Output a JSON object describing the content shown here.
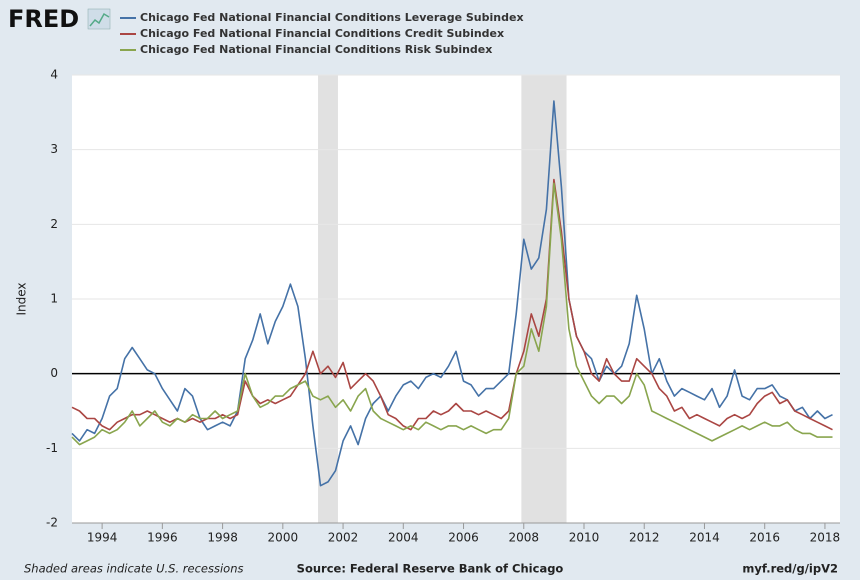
{
  "chart_data": {
    "type": "line",
    "logo": "FRED",
    "y_label": "Index",
    "footer_left": "Shaded areas indicate U.S. recessions",
    "source": "Source: Federal Reserve Bank of Chicago",
    "url": "myf.red/g/ipV2",
    "xlim": [
      1993,
      2018.5
    ],
    "xticks": [
      1994,
      1996,
      1998,
      2000,
      2002,
      2004,
      2006,
      2008,
      2010,
      2012,
      2014,
      2016,
      2018
    ],
    "ylim": [
      -2,
      4
    ],
    "yticks": [
      -2,
      -1,
      0,
      1,
      2,
      3,
      4
    ],
    "grid": true,
    "recessions": [
      [
        2001.17,
        2001.83
      ],
      [
        2007.92,
        2009.42
      ]
    ],
    "x": [
      1993,
      1993.25,
      1993.5,
      1993.75,
      1994,
      1994.25,
      1994.5,
      1994.75,
      1995,
      1995.25,
      1995.5,
      1995.75,
      1996,
      1996.25,
      1996.5,
      1996.75,
      1997,
      1997.25,
      1997.5,
      1997.75,
      1998,
      1998.25,
      1998.5,
      1998.75,
      1999,
      1999.25,
      1999.5,
      1999.75,
      2000,
      2000.25,
      2000.5,
      2000.75,
      2001,
      2001.25,
      2001.5,
      2001.75,
      2002,
      2002.25,
      2002.5,
      2002.75,
      2003,
      2003.25,
      2003.5,
      2003.75,
      2004,
      2004.25,
      2004.5,
      2004.75,
      2005,
      2005.25,
      2005.5,
      2005.75,
      2006,
      2006.25,
      2006.5,
      2006.75,
      2007,
      2007.25,
      2007.5,
      2007.75,
      2008,
      2008.25,
      2008.5,
      2008.75,
      2009,
      2009.25,
      2009.5,
      2009.75,
      2010,
      2010.25,
      2010.5,
      2010.75,
      2011,
      2011.25,
      2011.5,
      2011.75,
      2012,
      2012.25,
      2012.5,
      2012.75,
      2013,
      2013.25,
      2013.5,
      2013.75,
      2014,
      2014.25,
      2014.5,
      2014.75,
      2015,
      2015.25,
      2015.5,
      2015.75,
      2016,
      2016.25,
      2016.5,
      2016.75,
      2017,
      2017.25,
      2017.5,
      2017.75,
      2018,
      2018.25
    ],
    "series": [
      {
        "name": "Chicago Fed National Financial Conditions Leverage Subindex",
        "color": "#4572a7",
        "values": [
          -0.8,
          -0.9,
          -0.75,
          -0.8,
          -0.6,
          -0.3,
          -0.2,
          0.2,
          0.35,
          0.2,
          0.05,
          0.0,
          -0.2,
          -0.35,
          -0.5,
          -0.2,
          -0.3,
          -0.6,
          -0.75,
          -0.7,
          -0.65,
          -0.7,
          -0.5,
          0.2,
          0.45,
          0.8,
          0.4,
          0.7,
          0.9,
          1.2,
          0.9,
          0.2,
          -0.7,
          -1.5,
          -1.45,
          -1.3,
          -0.9,
          -0.7,
          -0.95,
          -0.6,
          -0.4,
          -0.3,
          -0.5,
          -0.3,
          -0.15,
          -0.1,
          -0.2,
          -0.05,
          0.0,
          -0.05,
          0.1,
          0.3,
          -0.1,
          -0.15,
          -0.3,
          -0.2,
          -0.2,
          -0.1,
          0.0,
          0.8,
          1.8,
          1.4,
          1.55,
          2.2,
          3.65,
          2.5,
          1.0,
          0.5,
          0.3,
          0.2,
          -0.1,
          0.1,
          0.0,
          0.1,
          0.4,
          1.05,
          0.6,
          0.0,
          0.2,
          -0.1,
          -0.3,
          -0.2,
          -0.25,
          -0.3,
          -0.35,
          -0.2,
          -0.45,
          -0.3,
          0.05,
          -0.3,
          -0.35,
          -0.2,
          -0.2,
          -0.15,
          -0.3,
          -0.35,
          -0.5,
          -0.45,
          -0.6,
          -0.5,
          -0.6,
          -0.55
        ]
      },
      {
        "name": "Chicago Fed National Financial Conditions Credit Subindex",
        "color": "#aa4643",
        "values": [
          -0.45,
          -0.5,
          -0.6,
          -0.6,
          -0.7,
          -0.75,
          -0.65,
          -0.6,
          -0.55,
          -0.55,
          -0.5,
          -0.55,
          -0.6,
          -0.65,
          -0.6,
          -0.65,
          -0.6,
          -0.65,
          -0.6,
          -0.6,
          -0.55,
          -0.6,
          -0.55,
          -0.1,
          -0.3,
          -0.4,
          -0.35,
          -0.4,
          -0.35,
          -0.3,
          -0.15,
          0.0,
          0.3,
          0.0,
          0.1,
          -0.05,
          0.15,
          -0.2,
          -0.1,
          0.0,
          -0.1,
          -0.3,
          -0.55,
          -0.6,
          -0.7,
          -0.75,
          -0.6,
          -0.6,
          -0.5,
          -0.55,
          -0.5,
          -0.4,
          -0.5,
          -0.5,
          -0.55,
          -0.5,
          -0.55,
          -0.6,
          -0.5,
          0.0,
          0.3,
          0.8,
          0.5,
          1.0,
          2.6,
          1.9,
          1.0,
          0.5,
          0.3,
          0.0,
          -0.1,
          0.2,
          0.0,
          -0.1,
          -0.1,
          0.2,
          0.1,
          0.0,
          -0.2,
          -0.3,
          -0.5,
          -0.45,
          -0.6,
          -0.55,
          -0.6,
          -0.65,
          -0.7,
          -0.6,
          -0.55,
          -0.6,
          -0.55,
          -0.4,
          -0.3,
          -0.25,
          -0.4,
          -0.35,
          -0.5,
          -0.55,
          -0.6,
          -0.65,
          -0.7,
          -0.75
        ]
      },
      {
        "name": "Chicago Fed National Financial Conditions Risk Subindex",
        "color": "#89a54e",
        "values": [
          -0.85,
          -0.95,
          -0.9,
          -0.85,
          -0.75,
          -0.8,
          -0.75,
          -0.65,
          -0.5,
          -0.7,
          -0.6,
          -0.5,
          -0.65,
          -0.7,
          -0.6,
          -0.65,
          -0.55,
          -0.6,
          -0.6,
          -0.5,
          -0.6,
          -0.55,
          -0.5,
          0.0,
          -0.3,
          -0.45,
          -0.4,
          -0.3,
          -0.3,
          -0.2,
          -0.15,
          -0.1,
          -0.3,
          -0.35,
          -0.3,
          -0.45,
          -0.35,
          -0.5,
          -0.3,
          -0.2,
          -0.5,
          -0.6,
          -0.65,
          -0.7,
          -0.75,
          -0.7,
          -0.75,
          -0.65,
          -0.7,
          -0.75,
          -0.7,
          -0.7,
          -0.75,
          -0.7,
          -0.75,
          -0.8,
          -0.75,
          -0.75,
          -0.6,
          0.0,
          0.1,
          0.6,
          0.3,
          0.9,
          2.55,
          1.8,
          0.6,
          0.1,
          -0.1,
          -0.3,
          -0.4,
          -0.3,
          -0.3,
          -0.4,
          -0.3,
          0.0,
          -0.15,
          -0.5,
          -0.55,
          -0.6,
          -0.65,
          -0.7,
          -0.75,
          -0.8,
          -0.85,
          -0.9,
          -0.85,
          -0.8,
          -0.75,
          -0.7,
          -0.75,
          -0.7,
          -0.65,
          -0.7,
          -0.7,
          -0.65,
          -0.75,
          -0.8,
          -0.8,
          -0.85,
          -0.85,
          -0.85
        ]
      }
    ]
  }
}
